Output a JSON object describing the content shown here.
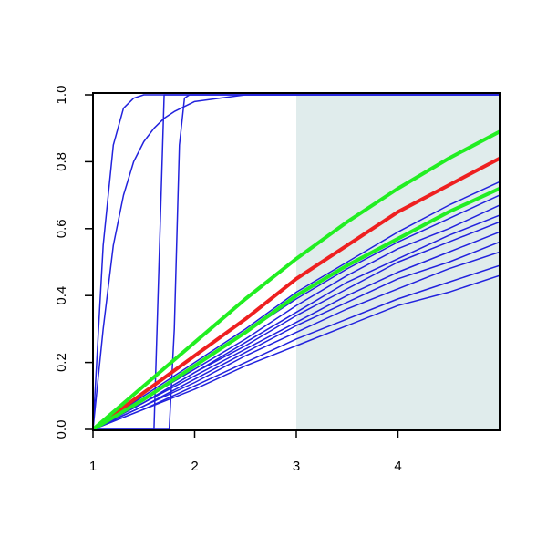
{
  "chart_data": {
    "type": "line",
    "xlim": [
      1,
      5
    ],
    "ylim": [
      0,
      1
    ],
    "xticks": [
      1,
      2,
      3,
      4
    ],
    "yticks": [
      {
        "value": 0,
        "label": "0.0"
      },
      0.2,
      0.4,
      0.6,
      0.8,
      {
        "value": 1,
        "label": "1.0"
      }
    ],
    "shaded_region": {
      "x": [
        3,
        5
      ],
      "color": "#e0ecec"
    },
    "series": [
      {
        "color": "#2222dd",
        "line_width": 1.5,
        "x": [
          1,
          1.1,
          1.2,
          1.3,
          1.4,
          1.5,
          5
        ],
        "values": [
          0,
          0.55,
          0.85,
          0.96,
          0.99,
          1,
          1
        ]
      },
      {
        "color": "#2222dd",
        "line_width": 1.5,
        "x": [
          1,
          1.1,
          1.2,
          1.3,
          1.4,
          1.5,
          1.6,
          1.7,
          1.8,
          2,
          2.25,
          2.5,
          5
        ],
        "values": [
          0,
          0.3,
          0.55,
          0.7,
          0.8,
          0.86,
          0.9,
          0.93,
          0.95,
          0.98,
          0.99,
          1,
          1
        ]
      },
      {
        "color": "#2222dd",
        "line_width": 1.5,
        "x": [
          1,
          1.6,
          1.65,
          1.7,
          5
        ],
        "values": [
          0,
          0,
          0.5,
          1,
          1
        ]
      },
      {
        "color": "#2222dd",
        "line_width": 1.5,
        "x": [
          1,
          1.75,
          1.8,
          1.85,
          1.9,
          1.95,
          5
        ],
        "values": [
          0,
          0,
          0.3,
          0.85,
          0.99,
          1,
          1
        ]
      },
      {
        "color": "#2222dd",
        "line_width": 1.5,
        "x": [
          1,
          1.5,
          2,
          2.5,
          3,
          3.5,
          4,
          4.5,
          5
        ],
        "values": [
          0,
          0.1,
          0.2,
          0.3,
          0.41,
          0.5,
          0.59,
          0.67,
          0.74
        ]
      },
      {
        "color": "#2222dd",
        "line_width": 1.5,
        "x": [
          1,
          1.5,
          2,
          2.5,
          3,
          3.5,
          4,
          4.5,
          5
        ],
        "values": [
          0,
          0.09,
          0.19,
          0.29,
          0.39,
          0.48,
          0.56,
          0.63,
          0.7
        ]
      },
      {
        "color": "#2222dd",
        "line_width": 1.5,
        "x": [
          1,
          1.5,
          2,
          2.5,
          3,
          3.5,
          4,
          4.5,
          5
        ],
        "values": [
          0,
          0.09,
          0.18,
          0.27,
          0.37,
          0.46,
          0.54,
          0.6,
          0.67
        ]
      },
      {
        "color": "#2222dd",
        "line_width": 1.5,
        "x": [
          1,
          1.5,
          2,
          2.5,
          3,
          3.5,
          4,
          4.5,
          5
        ],
        "values": [
          0,
          0.08,
          0.17,
          0.26,
          0.35,
          0.44,
          0.51,
          0.58,
          0.64
        ]
      },
      {
        "color": "#2222dd",
        "line_width": 1.5,
        "x": [
          1,
          1.5,
          2,
          2.5,
          3,
          3.5,
          4,
          4.5,
          5
        ],
        "values": [
          0,
          0.08,
          0.17,
          0.25,
          0.34,
          0.42,
          0.5,
          0.56,
          0.62
        ]
      },
      {
        "color": "#2222dd",
        "line_width": 1.5,
        "x": [
          1,
          1.5,
          2,
          2.5,
          3,
          3.5,
          4,
          4.5,
          5
        ],
        "values": [
          0,
          0.08,
          0.16,
          0.24,
          0.32,
          0.4,
          0.47,
          0.53,
          0.59
        ]
      },
      {
        "color": "#2222dd",
        "line_width": 1.5,
        "x": [
          1,
          1.5,
          2,
          2.5,
          3,
          3.5,
          4,
          4.5,
          5
        ],
        "values": [
          0,
          0.07,
          0.15,
          0.23,
          0.31,
          0.38,
          0.45,
          0.5,
          0.56
        ]
      },
      {
        "color": "#2222dd",
        "line_width": 1.5,
        "x": [
          1,
          1.5,
          2,
          2.5,
          3,
          3.5,
          4,
          4.5,
          5
        ],
        "values": [
          0,
          0.07,
          0.14,
          0.22,
          0.29,
          0.36,
          0.42,
          0.48,
          0.53
        ]
      },
      {
        "color": "#2222dd",
        "line_width": 1.5,
        "x": [
          1,
          1.5,
          2,
          2.5,
          3,
          3.5,
          4,
          4.5,
          5
        ],
        "values": [
          0,
          0.06,
          0.13,
          0.2,
          0.27,
          0.33,
          0.39,
          0.44,
          0.49
        ]
      },
      {
        "color": "#2222dd",
        "line_width": 1.5,
        "x": [
          1,
          1.5,
          2,
          2.5,
          3,
          3.5,
          4,
          4.5,
          5
        ],
        "values": [
          0,
          0.06,
          0.12,
          0.19,
          0.25,
          0.31,
          0.37,
          0.41,
          0.46
        ]
      },
      {
        "color": "#ee2020",
        "line_width": 4,
        "x": [
          1,
          1.5,
          2,
          2.5,
          3,
          3.5,
          4,
          4.5,
          5
        ],
        "values": [
          0,
          0.11,
          0.22,
          0.33,
          0.45,
          0.55,
          0.65,
          0.73,
          0.81
        ]
      },
      {
        "color": "#22ee22",
        "line_width": 4,
        "x": [
          1,
          1.5,
          2,
          2.5,
          3,
          3.5,
          4,
          4.5,
          5
        ],
        "values": [
          0,
          0.13,
          0.26,
          0.39,
          0.51,
          0.62,
          0.72,
          0.81,
          0.89
        ]
      },
      {
        "color": "#22ee22",
        "line_width": 4,
        "x": [
          1,
          1.5,
          2,
          2.5,
          3,
          3.5,
          4,
          4.5,
          5
        ],
        "values": [
          0,
          0.09,
          0.19,
          0.29,
          0.4,
          0.49,
          0.57,
          0.65,
          0.72
        ]
      }
    ]
  }
}
